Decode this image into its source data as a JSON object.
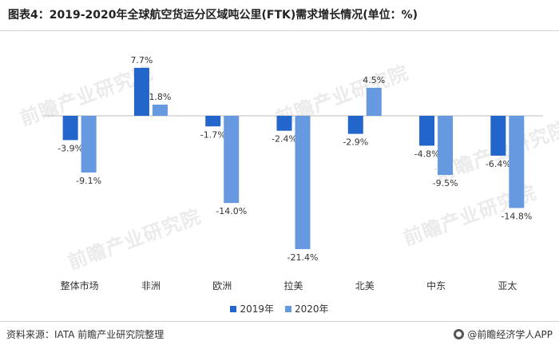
{
  "header": {
    "title": "图表4：2019-2020年全球航空货运分区域吨公里(FTK)需求增长情况(单位：%)"
  },
  "chart_data": {
    "type": "bar",
    "categories": [
      "整体市场",
      "非洲",
      "欧洲",
      "拉美",
      "北美",
      "中东",
      "亚太"
    ],
    "series": [
      {
        "name": "2019年",
        "values": [
          -3.9,
          7.7,
          -1.7,
          -2.4,
          -2.9,
          -4.8,
          -6.4
        ],
        "labels": [
          "-3.9%",
          "7.7%",
          "-1.7%",
          "-2.4%",
          "-2.9%",
          "-4.8%",
          "-6.4%"
        ],
        "color": "#2266cc"
      },
      {
        "name": "2020年",
        "values": [
          -9.1,
          1.8,
          -14.0,
          -21.4,
          4.5,
          -9.5,
          -14.8
        ],
        "labels": [
          "-9.1%",
          "1.8%",
          "-14.0%",
          "-21.4%",
          "4.5%",
          "-9.5%",
          "-14.8%"
        ],
        "color": "#6699e0"
      }
    ],
    "ylim": [
      -23,
      11
    ],
    "grid": false,
    "legend_position": "bottom"
  },
  "footer": {
    "source": "资料来源：IATA 前瞻产业研究院整理",
    "brand": "@前瞻经济学人APP"
  },
  "watermark": {
    "text": "前瞻产业研究院"
  }
}
